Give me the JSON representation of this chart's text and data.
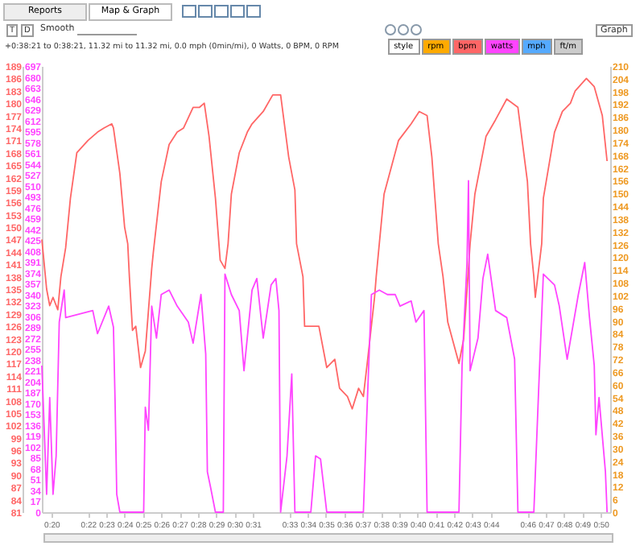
{
  "chart_data": {
    "type": "line",
    "legend": "top right",
    "annotations": [
      "Reports",
      "Map & Graph",
      "T",
      "D",
      "Smooth",
      "style",
      "rpm",
      "mph",
      "ft/m",
      "Graph",
      "+0:38:21 to 0:38:21, 11.32 mi to 11.32 mi, 0.0 mph (0min/mi), 0 Watts, 0 BPM, 0 RPM"
    ],
    "xlim": [
      19.48,
      50.52
    ],
    "xticks": [
      {
        "value": 20,
        "label": "0:20"
      },
      {
        "value": 22,
        "label": "0:22"
      },
      {
        "value": 23,
        "label": "0:23"
      },
      {
        "value": 24,
        "label": "0:24"
      },
      {
        "value": 25,
        "label": "0:25"
      },
      {
        "value": 26,
        "label": "0:26"
      },
      {
        "value": 27,
        "label": "0:27"
      },
      {
        "value": 28,
        "label": "0:28"
      },
      {
        "value": 29,
        "label": "0:29"
      },
      {
        "value": 30,
        "label": "0:30"
      },
      {
        "value": 31,
        "label": "0:31"
      },
      {
        "value": 33,
        "label": "0:33"
      },
      {
        "value": 34,
        "label": "0:34"
      },
      {
        "value": 35,
        "label": "0:35"
      },
      {
        "value": 36,
        "label": "0:36"
      },
      {
        "value": 37,
        "label": "0:37"
      },
      {
        "value": 38,
        "label": "0:38"
      },
      {
        "value": 39,
        "label": "0:39"
      },
      {
        "value": 40,
        "label": "0:40"
      },
      {
        "value": 41,
        "label": "0:41"
      },
      {
        "value": 42,
        "label": "0:42"
      },
      {
        "value": 43,
        "label": "0:43"
      },
      {
        "value": 44,
        "label": "0:44"
      },
      {
        "value": 46,
        "label": "0:46"
      },
      {
        "value": 47,
        "label": "0:47"
      },
      {
        "value": 48,
        "label": "0:48"
      },
      {
        "value": 49,
        "label": "0:49"
      },
      {
        "value": 50,
        "label": "0:50"
      }
    ],
    "ylim": [
      81,
      189
    ],
    "yticks": [
      81,
      84,
      87,
      90,
      93,
      96,
      99,
      102,
      105,
      108,
      111,
      114,
      117,
      120,
      123,
      126,
      129,
      132,
      135,
      138,
      141,
      144,
      147,
      150,
      153,
      156,
      159,
      162,
      165,
      168,
      171,
      174,
      177,
      180,
      183,
      186,
      189
    ],
    "y2lim": [
      0,
      697
    ],
    "y2ticks": [
      0,
      17,
      34,
      51,
      68,
      85,
      102,
      119,
      136,
      153,
      170,
      187,
      204,
      221,
      238,
      255,
      272,
      289,
      306,
      323,
      340,
      357,
      374,
      391,
      408,
      425,
      442,
      459,
      476,
      493,
      510,
      527,
      544,
      561,
      578,
      595,
      612,
      629,
      646,
      663,
      680,
      697
    ],
    "y3lim": [
      0,
      210
    ],
    "y3ticks": [
      0,
      6,
      12,
      18,
      24,
      30,
      36,
      42,
      48,
      54,
      60,
      66,
      72,
      78,
      84,
      90,
      96,
      102,
      108,
      114,
      120,
      126,
      132,
      138,
      144,
      150,
      156,
      162,
      168,
      174,
      180,
      186,
      192,
      198,
      204,
      210
    ],
    "series": [
      {
        "name": "bpm",
        "color": "#ff6666",
        "x": [
          19.48,
          19.74,
          19.91,
          20.09,
          20.35,
          20.52,
          20.78,
          21.04,
          21.39,
          22.0,
          22.52,
          22.87,
          23.3,
          23.39,
          23.74,
          24.0,
          24.17,
          24.26,
          24.43,
          24.61,
          24.87,
          25.13,
          25.48,
          25.57,
          26.0,
          26.43,
          26.87,
          27.22,
          27.74,
          28.09,
          28.35,
          28.61,
          28.96,
          29.22,
          29.48,
          29.65,
          29.83,
          30.26,
          30.7,
          30.96,
          31.57,
          32.09,
          32.52,
          32.96,
          33.3,
          33.39,
          33.74,
          33.83,
          34.17,
          34.61,
          35.04,
          35.48,
          35.74,
          36.17,
          36.43,
          36.78,
          37.04,
          37.3,
          37.65,
          37.74,
          37.91,
          38.17,
          38.96,
          39.65,
          40.09,
          40.52,
          40.78,
          41.13,
          41.39,
          41.65,
          42.26,
          42.52,
          42.87,
          43.13,
          43.74,
          44.26,
          44.87,
          45.48,
          46.0,
          46.17,
          46.35,
          46.43,
          46.78,
          46.87,
          47.48,
          47.91,
          48.35,
          48.61,
          49.22,
          49.65,
          50.09,
          50.35
        ],
        "values": [
          147,
          135,
          131,
          133,
          130,
          138,
          145,
          157,
          168,
          171,
          173,
          174,
          175,
          174,
          163,
          150,
          146,
          138,
          125,
          126,
          116,
          120,
          140,
          144,
          161,
          170,
          173,
          174,
          179,
          179,
          180,
          172,
          157,
          142,
          140,
          146,
          158,
          168,
          173,
          175,
          178,
          182,
          182,
          167,
          159,
          146,
          138,
          126,
          126,
          126,
          116,
          118,
          111,
          109,
          106,
          111,
          109,
          119,
          133,
          138,
          146,
          158,
          171,
          175,
          178,
          177,
          167,
          146,
          138,
          127,
          117,
          123,
          146,
          158,
          172,
          176,
          181,
          179,
          161,
          146,
          138,
          133,
          146,
          157,
          173,
          178,
          180,
          183,
          186,
          184,
          177,
          166
        ]
      },
      {
        "name": "watts",
        "color": "#ff44ff",
        "axis": "y2",
        "x": [
          19.48,
          19.74,
          19.91,
          20.09,
          20.26,
          20.43,
          20.7,
          20.78,
          22.26,
          22.52,
          23.13,
          23.39,
          23.48,
          23.57,
          23.74,
          25.04,
          25.13,
          25.3,
          25.48,
          25.74,
          26.0,
          26.43,
          26.87,
          27.48,
          27.74,
          28.17,
          28.43,
          28.52,
          28.7,
          28.96,
          29.39,
          29.48,
          29.83,
          30.26,
          30.52,
          30.96,
          31.22,
          31.57,
          32.0,
          32.26,
          32.43,
          32.52,
          32.87,
          33.13,
          33.3,
          34.17,
          34.43,
          34.7,
          35.04,
          37.04,
          37.22,
          37.48,
          37.91,
          38.35,
          38.78,
          39.04,
          39.65,
          39.91,
          40.35,
          40.52,
          42.26,
          42.43,
          42.7,
          42.78,
          42.87,
          43.3,
          43.57,
          43.83,
          44.26,
          44.87,
          45.3,
          45.48,
          46.35,
          46.61,
          46.87,
          47.48,
          47.74,
          48.17,
          48.78,
          49.13,
          49.39,
          49.65,
          49.74,
          49.91,
          50.26,
          50.35
        ],
        "values": [
          229,
          28,
          179,
          28,
          88,
          297,
          347,
          304,
          315,
          279,
          322,
          289,
          171,
          28,
          0,
          0,
          164,
          128,
          322,
          272,
          340,
          347,
          322,
          297,
          264,
          340,
          247,
          63,
          38,
          0,
          0,
          372,
          340,
          315,
          221,
          347,
          365,
          272,
          355,
          365,
          315,
          0,
          88,
          216,
          0,
          0,
          88,
          83,
          0,
          0,
          146,
          340,
          347,
          340,
          340,
          322,
          330,
          297,
          315,
          0,
          0,
          229,
          390,
          518,
          221,
          272,
          365,
          403,
          315,
          304,
          239,
          0,
          0,
          189,
          372,
          355,
          322,
          239,
          340,
          390,
          304,
          229,
          121,
          179,
          63,
          0
        ]
      }
    ]
  }
}
